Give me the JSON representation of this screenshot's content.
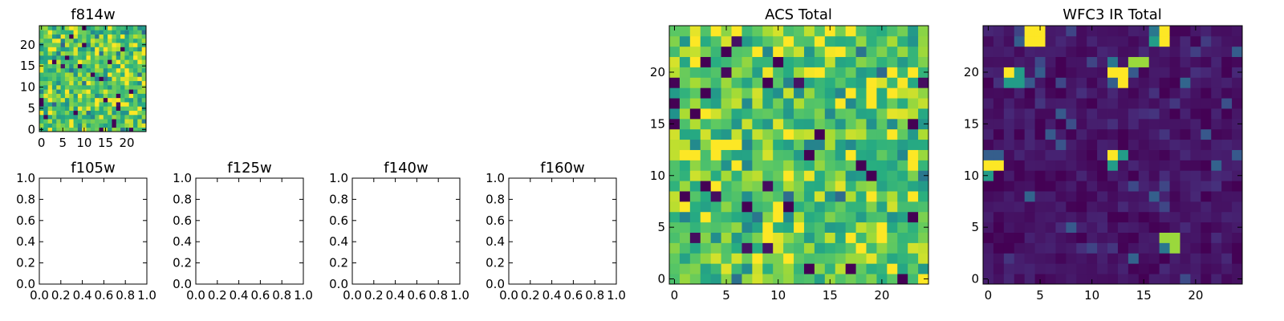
{
  "chart_data": [
    {
      "id": "f814w",
      "type": "heatmap",
      "title": "f814w",
      "grid_size": 25,
      "colormap": "viridis",
      "xticks": [
        "0",
        "5",
        "10",
        "15",
        "20"
      ],
      "yticks": [
        "0",
        "5",
        "10",
        "15",
        "20"
      ],
      "xlim": [
        -0.5,
        24.5
      ],
      "ylim": [
        -0.5,
        24.5
      ],
      "value_range": [
        0,
        1
      ],
      "base_level": 0.72,
      "noise": 0.22,
      "hotspots": [],
      "seed": 814
    },
    {
      "id": "f105w",
      "type": "empty",
      "title": "f105w",
      "xticks": [
        "0.0",
        "0.2",
        "0.4",
        "0.6",
        "0.8",
        "1.0"
      ],
      "yticks": [
        "0.0",
        "0.2",
        "0.4",
        "0.6",
        "0.8",
        "1.0"
      ],
      "xlim": [
        0,
        1
      ],
      "ylim": [
        0,
        1
      ]
    },
    {
      "id": "f125w",
      "type": "empty",
      "title": "f125w",
      "xticks": [
        "0.0",
        "0.2",
        "0.4",
        "0.6",
        "0.8",
        "1.0"
      ],
      "yticks": [
        "0.0",
        "0.2",
        "0.4",
        "0.6",
        "0.8",
        "1.0"
      ],
      "xlim": [
        0,
        1
      ],
      "ylim": [
        0,
        1
      ]
    },
    {
      "id": "f140w",
      "type": "empty",
      "title": "f140w",
      "xticks": [
        "0.0",
        "0.2",
        "0.4",
        "0.6",
        "0.8",
        "1.0"
      ],
      "yticks": [
        "0.0",
        "0.2",
        "0.4",
        "0.6",
        "0.8",
        "1.0"
      ],
      "xlim": [
        0,
        1
      ],
      "ylim": [
        0,
        1
      ]
    },
    {
      "id": "f160w",
      "type": "empty",
      "title": "f160w",
      "xticks": [
        "0.0",
        "0.2",
        "0.4",
        "0.6",
        "0.8",
        "1.0"
      ],
      "yticks": [
        "0.0",
        "0.2",
        "0.4",
        "0.6",
        "0.8",
        "1.0"
      ],
      "xlim": [
        0,
        1
      ],
      "ylim": [
        0,
        1
      ]
    },
    {
      "id": "acs-total",
      "type": "heatmap",
      "title": "ACS Total",
      "grid_size": 25,
      "colormap": "viridis",
      "xticks": [
        "0",
        "5",
        "10",
        "15",
        "20"
      ],
      "yticks": [
        "0",
        "5",
        "10",
        "15",
        "20"
      ],
      "xlim": [
        -0.5,
        24.5
      ],
      "ylim": [
        -0.5,
        24.5
      ],
      "value_range": [
        0,
        1
      ],
      "base_level": 0.72,
      "noise": 0.22,
      "hotspots": [],
      "seed": 4242
    },
    {
      "id": "wfc3-ir-total",
      "type": "heatmap",
      "title": "WFC3 IR Total",
      "grid_size": 25,
      "colormap": "viridis",
      "xticks": [
        "0",
        "5",
        "10",
        "15",
        "20"
      ],
      "yticks": [
        "0",
        "5",
        "10",
        "15",
        "20"
      ],
      "xlim": [
        -0.5,
        24.5
      ],
      "ylim": [
        -0.5,
        24.5
      ],
      "value_range": [
        0,
        1
      ],
      "base_level": 0.06,
      "noise": 0.05,
      "hotspots": [
        {
          "x": 4,
          "y": 24,
          "value": 1.0
        },
        {
          "x": 5,
          "y": 24,
          "value": 1.0
        },
        {
          "x": 4,
          "y": 23,
          "value": 1.0
        },
        {
          "x": 5,
          "y": 23,
          "value": 1.0
        },
        {
          "x": 3,
          "y": 23,
          "value": 0.3
        },
        {
          "x": 17,
          "y": 24,
          "value": 1.0
        },
        {
          "x": 17,
          "y": 23,
          "value": 1.0
        },
        {
          "x": 16,
          "y": 23,
          "value": 0.55
        },
        {
          "x": 16,
          "y": 24,
          "value": 0.4
        },
        {
          "x": 2,
          "y": 20,
          "value": 1.0
        },
        {
          "x": 3,
          "y": 20,
          "value": 0.55
        },
        {
          "x": 2,
          "y": 19,
          "value": 0.55
        },
        {
          "x": 3,
          "y": 19,
          "value": 0.55
        },
        {
          "x": 12,
          "y": 20,
          "value": 1.0
        },
        {
          "x": 13,
          "y": 20,
          "value": 1.0
        },
        {
          "x": 13,
          "y": 19,
          "value": 1.0
        },
        {
          "x": 12,
          "y": 19,
          "value": 0.3
        },
        {
          "x": 12,
          "y": 21,
          "value": 0.4
        },
        {
          "x": 14,
          "y": 21,
          "value": 0.85
        },
        {
          "x": 15,
          "y": 21,
          "value": 0.85
        },
        {
          "x": 0,
          "y": 11,
          "value": 1.0
        },
        {
          "x": 1,
          "y": 11,
          "value": 1.0
        },
        {
          "x": 0,
          "y": 12,
          "value": 0.3
        },
        {
          "x": 1,
          "y": 12,
          "value": 0.3
        },
        {
          "x": 0,
          "y": 10,
          "value": 0.55
        },
        {
          "x": 12,
          "y": 12,
          "value": 1.0
        },
        {
          "x": 12,
          "y": 11,
          "value": 0.55
        },
        {
          "x": 13,
          "y": 12,
          "value": 0.55
        },
        {
          "x": 17,
          "y": 4,
          "value": 0.85
        },
        {
          "x": 18,
          "y": 4,
          "value": 0.85
        },
        {
          "x": 18,
          "y": 3,
          "value": 0.85
        },
        {
          "x": 17,
          "y": 3,
          "value": 0.4
        }
      ],
      "seed": 3
    }
  ]
}
